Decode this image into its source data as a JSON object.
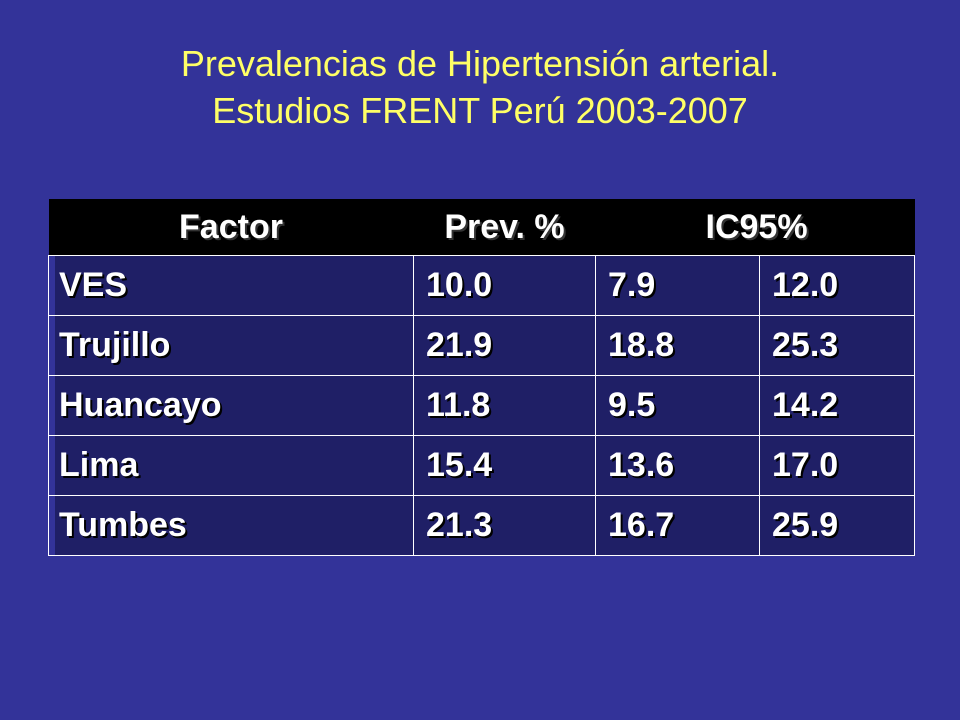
{
  "title": {
    "line1": "Prevalencias de Hipertensión arterial.",
    "line2": "Estudios FRENT Perú 2003-2007"
  },
  "table": {
    "headers": {
      "factor": "Factor",
      "prev": "Prev. %",
      "ic": "IC95%"
    },
    "rows": [
      {
        "factor": "VES",
        "prev": "10.0",
        "ic_low": "7.9",
        "ic_high": "12.0"
      },
      {
        "factor": "Trujillo",
        "prev": "21.9",
        "ic_low": "18.8",
        "ic_high": "25.3"
      },
      {
        "factor": "Huancayo",
        "prev": "11.8",
        "ic_low": "9.5",
        "ic_high": "14.2"
      },
      {
        "factor": "Lima",
        "prev": "15.4",
        "ic_low": "13.6",
        "ic_high": "17.0"
      },
      {
        "factor": "Tumbes",
        "prev": "21.3",
        "ic_low": "16.7",
        "ic_high": "25.9"
      }
    ]
  },
  "colors": {
    "background": "#333399",
    "title": "#ffff66",
    "header_bg": "#000000",
    "text": "#ffffff"
  }
}
